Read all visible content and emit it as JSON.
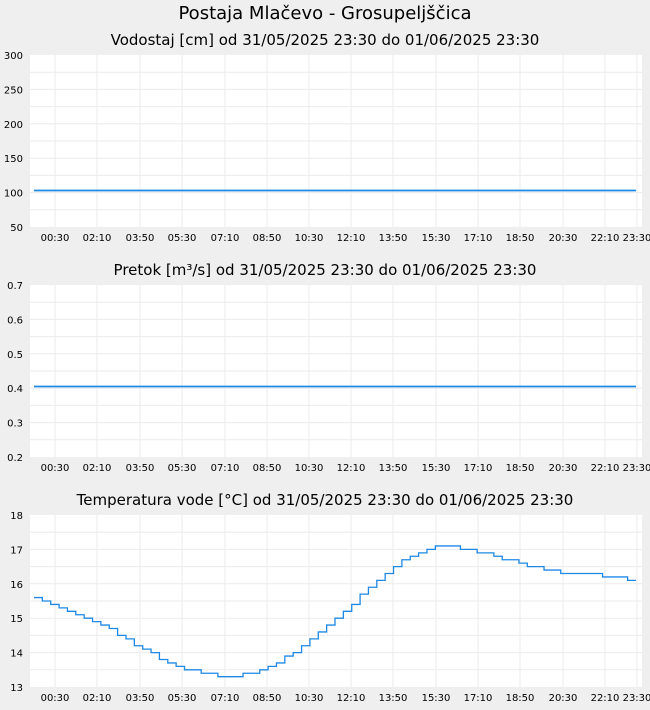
{
  "page_title": "Postaja Mlačevo - Grosupeljščica",
  "chart_data": [
    {
      "type": "line",
      "title": "Vodostaj [cm] od 31/05/2025 23:30 do 01/06/2025 23:30",
      "xlabel": "",
      "ylabel": "",
      "x_ticks": [
        "00:30",
        "02:10",
        "03:50",
        "05:30",
        "07:10",
        "08:50",
        "10:30",
        "12:10",
        "13:50",
        "15:30",
        "17:10",
        "18:50",
        "20:30",
        "22:10",
        "23:30"
      ],
      "y_ticks": [
        "300",
        "250",
        "200",
        "150",
        "100",
        "50"
      ],
      "ylim": [
        50,
        300
      ],
      "x_range_minutes": [
        0,
        1440
      ],
      "grid": true,
      "series": [
        {
          "color": "#1e88e5",
          "x": [
            0,
            1440
          ],
          "values": [
            103,
            103
          ]
        }
      ]
    },
    {
      "type": "line",
      "title": "Pretok [m³/s] od 31/05/2025 23:30 do 01/06/2025 23:30",
      "xlabel": "",
      "ylabel": "",
      "x_ticks": [
        "00:30",
        "02:10",
        "03:50",
        "05:30",
        "07:10",
        "08:50",
        "10:30",
        "12:10",
        "13:50",
        "15:30",
        "17:10",
        "18:50",
        "20:30",
        "22:10",
        "23:30"
      ],
      "y_ticks": [
        "0.7",
        "0.6",
        "0.5",
        "0.4",
        "0.3",
        "0.2"
      ],
      "ylim": [
        0.2,
        0.7
      ],
      "x_range_minutes": [
        0,
        1440
      ],
      "grid": true,
      "series": [
        {
          "color": "#1e88e5",
          "x": [
            0,
            1440
          ],
          "values": [
            0.405,
            0.405
          ]
        }
      ]
    },
    {
      "type": "line",
      "title": "Temperatura vode [°C] od 31/05/2025 23:30 do 01/06/2025 23:30",
      "xlabel": "",
      "ylabel": "",
      "x_ticks": [
        "00:30",
        "02:10",
        "03:50",
        "05:30",
        "07:10",
        "08:50",
        "10:30",
        "12:10",
        "13:50",
        "15:30",
        "17:10",
        "18:50",
        "20:30",
        "22:10",
        "23:30"
      ],
      "y_ticks": [
        "18",
        "17",
        "16",
        "15",
        "14",
        "13"
      ],
      "ylim": [
        13,
        18
      ],
      "x_range_minutes": [
        0,
        1440
      ],
      "grid": true,
      "series": [
        {
          "color": "#1e88e5",
          "x": [
            0,
            20,
            40,
            60,
            80,
            100,
            120,
            140,
            160,
            180,
            200,
            220,
            240,
            260,
            280,
            300,
            320,
            340,
            360,
            380,
            400,
            420,
            440,
            460,
            480,
            500,
            520,
            540,
            560,
            580,
            600,
            620,
            640,
            660,
            680,
            700,
            720,
            740,
            760,
            780,
            800,
            820,
            840,
            860,
            880,
            900,
            920,
            940,
            960,
            980,
            1000,
            1020,
            1040,
            1060,
            1080,
            1100,
            1120,
            1140,
            1160,
            1180,
            1200,
            1220,
            1240,
            1260,
            1280,
            1300,
            1320,
            1340,
            1360,
            1380,
            1400,
            1420,
            1440
          ],
          "values": [
            15.6,
            15.5,
            15.4,
            15.3,
            15.2,
            15.1,
            15.0,
            14.9,
            14.8,
            14.7,
            14.5,
            14.4,
            14.2,
            14.1,
            14.0,
            13.8,
            13.7,
            13.6,
            13.5,
            13.5,
            13.4,
            13.4,
            13.3,
            13.3,
            13.3,
            13.4,
            13.4,
            13.5,
            13.6,
            13.7,
            13.9,
            14.0,
            14.2,
            14.4,
            14.6,
            14.8,
            15.0,
            15.2,
            15.4,
            15.7,
            15.9,
            16.1,
            16.3,
            16.5,
            16.7,
            16.8,
            16.9,
            17.0,
            17.1,
            17.1,
            17.1,
            17.0,
            17.0,
            16.9,
            16.9,
            16.8,
            16.7,
            16.7,
            16.6,
            16.5,
            16.5,
            16.4,
            16.4,
            16.3,
            16.3,
            16.3,
            16.3,
            16.3,
            16.2,
            16.2,
            16.2,
            16.1,
            16.1
          ]
        }
      ]
    }
  ]
}
